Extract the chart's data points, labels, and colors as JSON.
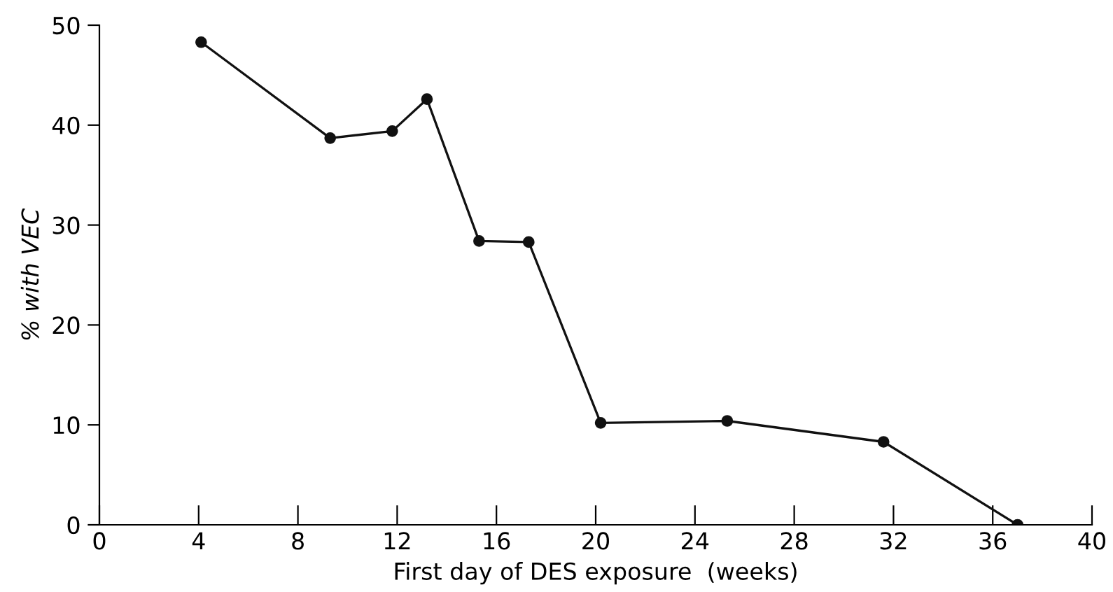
{
  "chart_data": {
    "type": "line",
    "xlabel": "First day of DES exposure  (weeks)",
    "ylabel": "% with VEC",
    "x": [
      4.1,
      9.3,
      11.8,
      13.2,
      15.3,
      17.3,
      20.2,
      25.3,
      31.6,
      37.0
    ],
    "series": [
      {
        "color": "#111111",
        "values": [
          48.3,
          38.7,
          39.4,
          42.6,
          28.4,
          28.3,
          10.2,
          10.4,
          8.3,
          0
        ]
      }
    ],
    "xlim": [
      0,
      40
    ],
    "xticks": [
      0,
      4,
      8,
      12,
      16,
      20,
      24,
      28,
      32,
      36,
      40
    ],
    "ylim": [
      0,
      50
    ],
    "yticks": [
      0,
      10,
      20,
      30,
      40,
      50
    ],
    "grid": false,
    "legend": false,
    "marker": "circle",
    "line_style": "solid"
  }
}
